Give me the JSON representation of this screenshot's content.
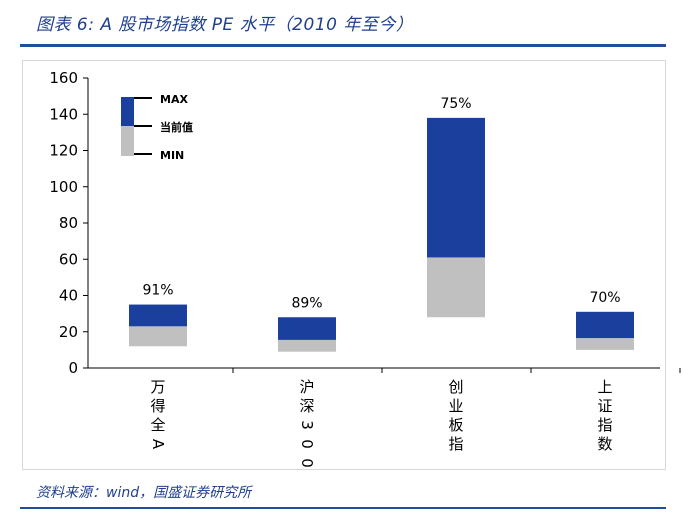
{
  "header": {
    "title": "图表 6:  A 股市场指数 PE 水平（2010 年至今）"
  },
  "footer": {
    "source": "资料来源：wind，国盛证券研究所"
  },
  "colors": {
    "upper": "#1a3f9c",
    "lower": "#c0c0c0",
    "title": "#1f3f8f"
  },
  "chart_data": {
    "type": "bar",
    "subtype": "floating-range",
    "title": "A 股市场指数 PE 水平（2010 年至今）",
    "categories": [
      "万得全A",
      "沪深300",
      "创业板指",
      "上证指数"
    ],
    "series": [
      {
        "name": "MIN",
        "values": [
          12,
          9,
          28,
          10
        ]
      },
      {
        "name": "当前值",
        "values": [
          23,
          15.5,
          61,
          16.5
        ]
      },
      {
        "name": "MAX",
        "values": [
          35,
          28,
          138,
          31
        ]
      }
    ],
    "percentile_labels": [
      "91%",
      "89%",
      "75%",
      "70%"
    ],
    "legend": [
      "MAX",
      "当前值",
      "MIN"
    ],
    "legend_position": "top-left",
    "ylim": [
      0,
      160
    ],
    "yticks": [
      0,
      20,
      40,
      60,
      80,
      100,
      120,
      140,
      160
    ],
    "grid": false,
    "xlabel": "",
    "ylabel": ""
  }
}
